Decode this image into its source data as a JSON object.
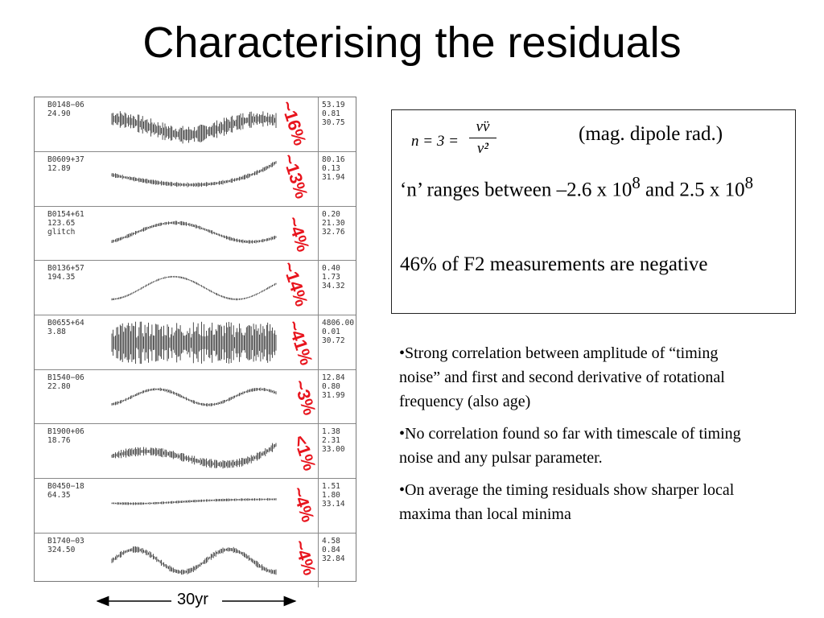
{
  "title": "Characterising the residuals",
  "scale_bar_label": "30yr",
  "accent_color": "#e8141d",
  "formula": {
    "lhs": "n = 3 =",
    "numerator": "ν̈ν",
    "denominator": "ν̇²",
    "note": "(mag. dipole rad.)"
  },
  "box_text": {
    "p1_pre": "‘n’ ranges between –2.6 x 10",
    "p1_sup1": "8",
    "p1_mid": " and 2.5 x 10",
    "p1_sup2": "8",
    "p2": "46% of F2 measurements are negative"
  },
  "bullets": [
    "•Strong correlation between amplitude of “timing noise” and first and second derivative of rotational frequency (also age)",
    "•No correlation found so far with timescale of timing noise and any pulsar parameter.",
    "•On average the timing residuals show sharper local maxima than local minima"
  ],
  "chart_data": {
    "type": "table",
    "description_axis": "timing residuals vs time",
    "pulsars": [
      {
        "name": "B0148−06",
        "line2": "24.90",
        "line3": "",
        "vals": [
          "53.19",
          "0.81",
          "30.75"
        ],
        "percent": "~16%"
      },
      {
        "name": "B0609+37",
        "line2": "12.89",
        "line3": "",
        "vals": [
          "80.16",
          "0.13",
          "31.94"
        ],
        "percent": "~13%"
      },
      {
        "name": "B0154+61",
        "line2": "123.65",
        "line3": "glitch",
        "vals": [
          "0.20",
          "21.30",
          "32.76"
        ],
        "percent": "~4%"
      },
      {
        "name": "B0136+57",
        "line2": "194.35",
        "line3": "",
        "vals": [
          "0.40",
          "1.73",
          "34.32"
        ],
        "percent": "~14%"
      },
      {
        "name": "B0655+64",
        "line2": "3.88",
        "line3": "",
        "vals": [
          "4806.00",
          "0.01",
          "30.72"
        ],
        "percent": "~41%"
      },
      {
        "name": "B1540−06",
        "line2": "22.80",
        "line3": "",
        "vals": [
          "12.84",
          "0.80",
          "31.99"
        ],
        "percent": "~3%"
      },
      {
        "name": "B1900+06",
        "line2": "18.76",
        "line3": "",
        "vals": [
          "1.38",
          "2.31",
          "33.00"
        ],
        "percent": "<1%"
      },
      {
        "name": "B0450−18",
        "line2": "64.35",
        "line3": "",
        "vals": [
          "1.51",
          "1.80",
          "33.14"
        ],
        "percent": "~4%"
      },
      {
        "name": "B1740−03",
        "line2": "324.50",
        "line3": "",
        "vals": [
          "4.58",
          "0.84",
          "32.84"
        ],
        "percent": "~4%"
      }
    ]
  }
}
